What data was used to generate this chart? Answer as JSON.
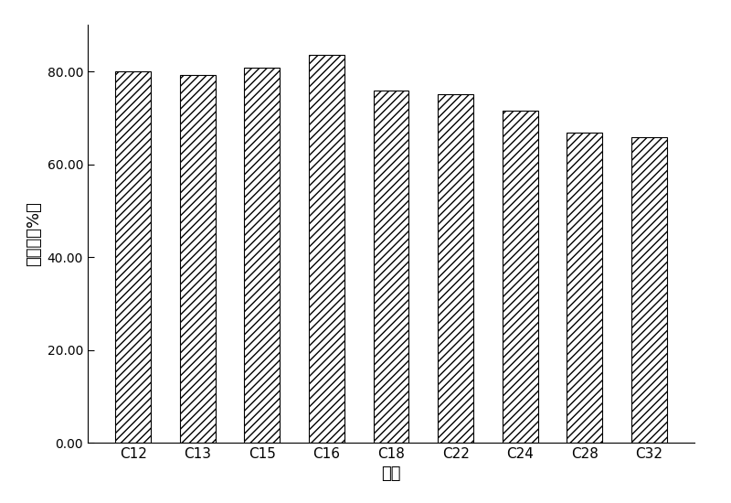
{
  "categories": [
    "C12",
    "C13",
    "C15",
    "C16",
    "C18",
    "C22",
    "C24",
    "C28",
    "C32"
  ],
  "values": [
    80.0,
    79.2,
    80.8,
    83.5,
    76.0,
    75.2,
    71.5,
    66.8,
    65.8
  ],
  "xlabel": "烷烃",
  "ylabel": "降解率（%）",
  "ylim": [
    0,
    90
  ],
  "yticks": [
    0.0,
    20.0,
    40.0,
    60.0,
    80.0
  ],
  "bar_color": "#ffffff",
  "bar_edgecolor": "#000000",
  "hatch": "////",
  "bar_width": 0.55,
  "label_fontsize": 13,
  "tick_fontsize": 11,
  "background_color": "#ffffff"
}
